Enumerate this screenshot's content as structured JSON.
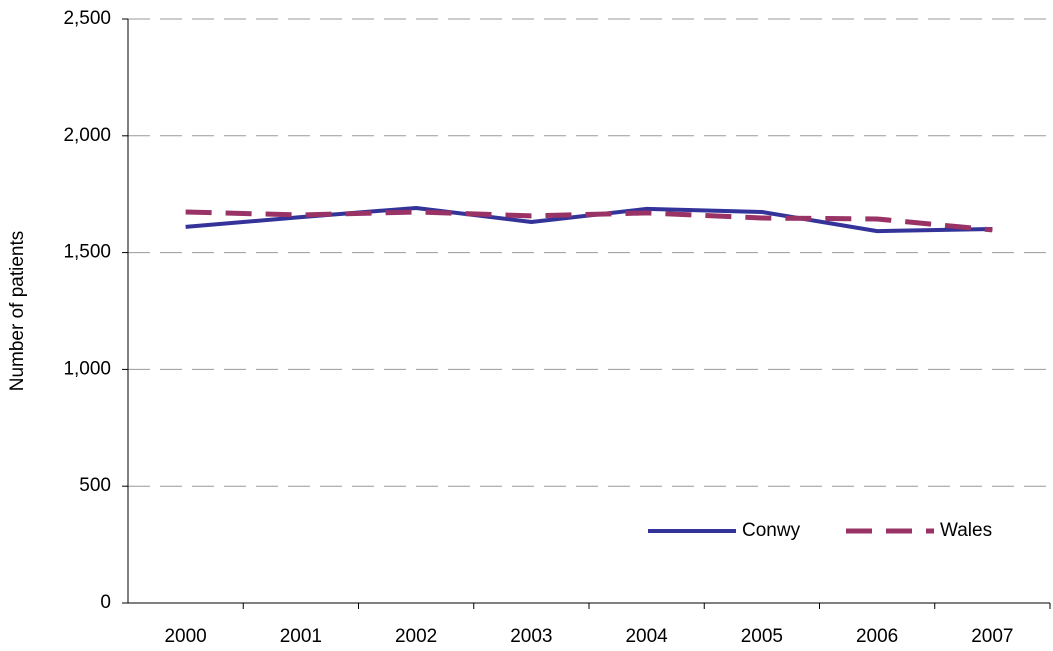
{
  "chart_data": {
    "type": "line",
    "y_label": "Number of patients",
    "categories": [
      "2000",
      "2001",
      "2002",
      "2003",
      "2004",
      "2005",
      "2006",
      "2007"
    ],
    "series": [
      {
        "name": "Conwy",
        "color": "#333399",
        "style": "solid",
        "values": [
          1610,
          1652,
          1691,
          1631,
          1687,
          1674,
          1592,
          1601
        ]
      },
      {
        "name": "Wales",
        "color": "#993366",
        "style": "dashed",
        "values": [
          1674,
          1661,
          1674,
          1657,
          1670,
          1648,
          1644,
          1597
        ]
      }
    ],
    "ylim": [
      0,
      2500
    ],
    "yticks": [
      0,
      500,
      {
        "value": 1000,
        "label": "1,000"
      },
      {
        "value": 1500,
        "label": "1,500"
      },
      {
        "value": 2000,
        "label": "2,000"
      },
      {
        "value": 2500,
        "label": "2,500"
      }
    ],
    "grid": true,
    "legend": "lower right"
  }
}
